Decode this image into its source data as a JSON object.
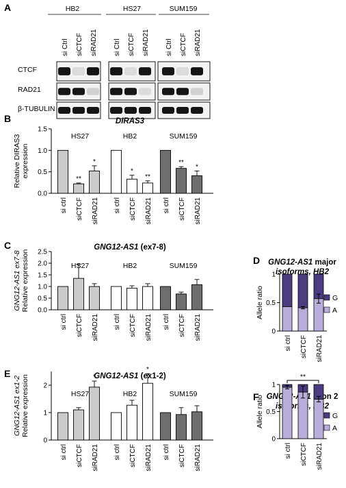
{
  "panel_labels": {
    "a": "A",
    "b": "B",
    "c": "C",
    "d": "D",
    "e": "E",
    "f": "F"
  },
  "blot": {
    "cell_lines": [
      "HB2",
      "HS27",
      "SUM159"
    ],
    "lanes": [
      "si Ctrl",
      "siCTCF",
      "siRAD21"
    ],
    "rows": [
      "CTCF",
      "RAD21",
      "β-TUBULIN"
    ]
  },
  "colors": {
    "hs27": "#cbcbcb",
    "hb2": "#ffffff",
    "sum159": "#6e6e6e",
    "iso_g": "#4b3c80",
    "iso_a": "#b8aed9",
    "blot_band": "#151515"
  },
  "sig": {
    "one": "*",
    "two": "**"
  },
  "chart_data": [
    {
      "id": "B",
      "type": "bar",
      "title": "DIRAS3",
      "ylabel": [
        "Relative DIRAS3",
        "expression"
      ],
      "ylim": [
        0,
        1.5
      ],
      "yticks": [
        "0.0",
        "0.5",
        "1.0",
        "1.5"
      ],
      "group_labels": [
        "HS27",
        "HB2",
        "SUM159"
      ],
      "categories": [
        "si ctrl",
        "siCTCF",
        "siRAD21"
      ],
      "series": [
        {
          "values": [
            1.0,
            0.22,
            0.52
          ],
          "errors": [
            0,
            0.02,
            0.12
          ],
          "sig": [
            "",
            "**",
            "*"
          ]
        },
        {
          "values": [
            1.0,
            0.33,
            0.24
          ],
          "errors": [
            0,
            0.09,
            0.05
          ],
          "sig": [
            "",
            "*",
            "**"
          ]
        },
        {
          "values": [
            1.0,
            0.58,
            0.41
          ],
          "errors": [
            0,
            0.04,
            0.11
          ],
          "sig": [
            "",
            "**",
            "*"
          ]
        }
      ]
    },
    {
      "id": "C",
      "type": "bar",
      "title": "GNG12-AS1",
      "title_suffix": "(ex7-8)",
      "ylabel": [
        "GNG12-AS1 ex7-8",
        "Relative expression"
      ],
      "ylim": [
        0,
        2.5
      ],
      "yticks": [
        "0.0",
        "0.5",
        "1.0",
        "1.5",
        "2.0",
        "2.5"
      ],
      "group_labels": [
        "HS27",
        "HB2",
        "SUM159"
      ],
      "categories": [
        "si ctrl",
        "siCTCF",
        "siRAD21"
      ],
      "series": [
        {
          "values": [
            1.0,
            1.35,
            1.0
          ],
          "errors": [
            0,
            0.6,
            0.12
          ],
          "sig": [
            "",
            "",
            ""
          ]
        },
        {
          "values": [
            1.0,
            0.93,
            1.0
          ],
          "errors": [
            0,
            0.1,
            0.12
          ],
          "sig": [
            "",
            "",
            ""
          ]
        },
        {
          "values": [
            1.0,
            0.68,
            1.08
          ],
          "errors": [
            0,
            0.08,
            0.22
          ],
          "sig": [
            "",
            "",
            ""
          ]
        }
      ]
    },
    {
      "id": "E",
      "type": "bar",
      "title": "GNG12-AS1",
      "title_suffix": "(ex1-2)",
      "ylabel": [
        "GNG12-AS1 ex1-2",
        "Relative expression"
      ],
      "ylim": [
        0,
        2.5
      ],
      "yticks": [
        "0",
        "1",
        "2"
      ],
      "group_labels": [
        "HS27",
        "HB2",
        "SUM159"
      ],
      "categories": [
        "si ctrl",
        "siCTCF",
        "siRAD21"
      ],
      "series": [
        {
          "values": [
            1.0,
            1.1,
            1.93
          ],
          "errors": [
            0,
            0.08,
            0.22
          ],
          "sig": [
            "",
            "",
            "*"
          ]
        },
        {
          "values": [
            1.0,
            1.27,
            2.07
          ],
          "errors": [
            0,
            0.18,
            0.35
          ],
          "sig": [
            "",
            "",
            "*"
          ]
        },
        {
          "values": [
            1.0,
            0.93,
            1.03
          ],
          "errors": [
            0,
            0.25,
            0.22
          ],
          "sig": [
            "",
            "",
            ""
          ]
        }
      ]
    },
    {
      "id": "D",
      "type": "bar",
      "stacked": true,
      "title": [
        "GNG12-AS1 major",
        "isoforms, HB2"
      ],
      "ylabel": "Allele ratio",
      "ylim": [
        0,
        1
      ],
      "yticks": [
        "0",
        "0.5",
        "1"
      ],
      "categories": [
        "si ctrl",
        "siCTCF",
        "siRAD21"
      ],
      "series": [
        {
          "name": "A",
          "values": [
            0.43,
            0.41,
            0.57
          ],
          "errors": [
            0,
            0.02,
            0.08
          ]
        },
        {
          "name": "G",
          "values": [
            0.57,
            0.59,
            0.43
          ]
        }
      ],
      "legend": [
        "G",
        "A"
      ]
    },
    {
      "id": "F",
      "type": "bar",
      "stacked": true,
      "title": [
        "GNG12-AS1 exon 2",
        "isoforms,  HB2"
      ],
      "ylabel": "Allele ratio",
      "ylim": [
        0,
        1
      ],
      "yticks": [
        "0",
        "0.5",
        "1"
      ],
      "categories": [
        "si ctrl",
        "siCTCF",
        "siRAD21"
      ],
      "series": [
        {
          "name": "A",
          "values": [
            0.95,
            0.86,
            0.73
          ],
          "errors": [
            0.03,
            0.11,
            0.05
          ]
        },
        {
          "name": "G",
          "values": [
            0.05,
            0.14,
            0.27
          ]
        }
      ],
      "legend": [
        "G",
        "A"
      ],
      "bracket_sig": "**"
    }
  ]
}
